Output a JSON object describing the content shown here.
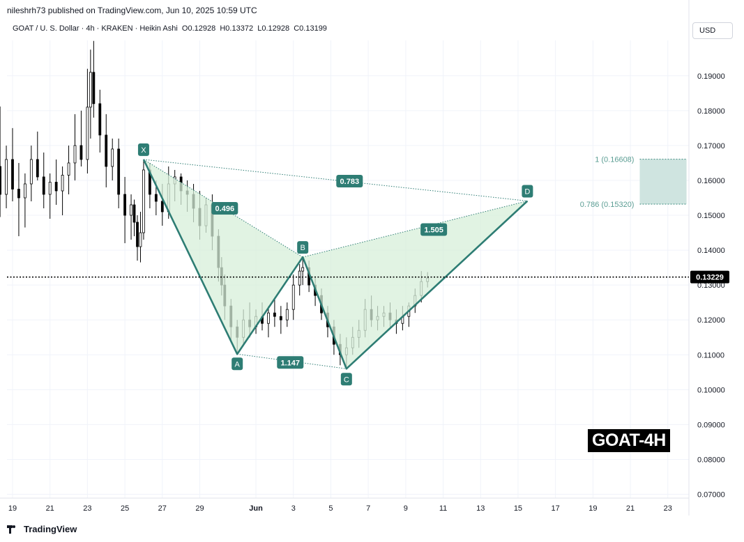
{
  "header": {
    "published": "nileshrh73 published on TradingView.com, Jun 10, 2025 10:59 UTC"
  },
  "legend": {
    "symbol": "GOAT / U. S. Dollar · 4h · KRAKEN · Heikin Ashi",
    "open": "O0.12928",
    "high": "H0.13372",
    "low": "L0.12928",
    "close": "C0.13199"
  },
  "currency": "USD",
  "badge": "GOAT-4H",
  "footer": {
    "brand": "TradingView"
  },
  "colors": {
    "pattern_line": "#2e7d74",
    "pattern_fill": "#d7efd9",
    "label_bg": "#2e7d74",
    "target_zone": "#cfe4e0",
    "target_text": "#5b9d93",
    "candle": "#000000",
    "price_line": "#000000"
  },
  "chart_data": {
    "type": "candlestick",
    "title": "GOAT / U. S. Dollar · 4h · KRAKEN · Heikin Ashi",
    "ylim": [
      0.068,
      0.204
    ],
    "y_ticks": [
      "0.07000",
      "0.08000",
      "0.09000",
      "0.10000",
      "0.11000",
      "0.12000",
      "0.13000",
      "0.14000",
      "0.15000",
      "0.16000",
      "0.17000",
      "0.18000",
      "0.19000"
    ],
    "x_ticks": [
      {
        "label": "19",
        "date": "2025-05-19"
      },
      {
        "label": "21",
        "date": "2025-05-21"
      },
      {
        "label": "23",
        "date": "2025-05-23"
      },
      {
        "label": "25",
        "date": "2025-05-25"
      },
      {
        "label": "27",
        "date": "2025-05-27"
      },
      {
        "label": "29",
        "date": "2025-05-29"
      },
      {
        "label": "Jun",
        "date": "2025-06-01"
      },
      {
        "label": "3",
        "date": "2025-06-03"
      },
      {
        "label": "5",
        "date": "2025-06-05"
      },
      {
        "label": "7",
        "date": "2025-06-07"
      },
      {
        "label": "9",
        "date": "2025-06-09"
      },
      {
        "label": "11",
        "date": "2025-06-11"
      },
      {
        "label": "13",
        "date": "2025-06-13"
      },
      {
        "label": "15",
        "date": "2025-06-15"
      },
      {
        "label": "17",
        "date": "2025-06-17"
      },
      {
        "label": "19",
        "date": "2025-06-19"
      },
      {
        "label": "21",
        "date": "2025-06-21"
      },
      {
        "label": "23",
        "date": "2025-06-23"
      }
    ],
    "last_price": 0.13229,
    "last_price_label": "0.13229",
    "pattern": {
      "points": [
        {
          "label": "X",
          "date": "2025-05-26 00:00",
          "price": 0.166
        },
        {
          "label": "A",
          "date": "2025-05-31 00:00",
          "price": 0.1102
        },
        {
          "label": "B",
          "date": "2025-06-03 12:00",
          "price": 0.138
        },
        {
          "label": "C",
          "date": "2025-06-05 20:00",
          "price": 0.106
        },
        {
          "label": "D",
          "date": "2025-06-15 12:00",
          "price": 0.1541
        }
      ],
      "ratios": [
        {
          "value": "0.496",
          "date": "2025-05-30 08:00",
          "price": 0.152
        },
        {
          "value": "1.147",
          "date": "2025-06-02 20:00",
          "price": 0.1078
        },
        {
          "value": "1.505",
          "date": "2025-06-10 12:00",
          "price": 0.1459
        },
        {
          "value": "0.783",
          "date": "2025-06-06 00:00",
          "price": 0.1598
        }
      ]
    },
    "target_zone": {
      "start_date": "2025-06-21 12:00",
      "end_date": "2025-06-24 00:00",
      "upper": {
        "price": 0.16608,
        "label": "1 (0.16608)"
      },
      "lower": {
        "price": 0.1532,
        "label": "0.786 (0.15320)"
      }
    },
    "candles": [
      {
        "date": "2025-05-18 08:00",
        "open": 0.164,
        "high": 0.1812,
        "low": 0.1495,
        "close": 0.156
      },
      {
        "date": "2025-05-18 16:00",
        "open": 0.156,
        "high": 0.17,
        "low": 0.152,
        "close": 0.166
      },
      {
        "date": "2025-05-19 00:00",
        "open": 0.166,
        "high": 0.175,
        "low": 0.154,
        "close": 0.1575
      },
      {
        "date": "2025-05-19 08:00",
        "open": 0.1575,
        "high": 0.165,
        "low": 0.144,
        "close": 0.155
      },
      {
        "date": "2025-05-19 16:00",
        "open": 0.155,
        "high": 0.162,
        "low": 0.1465,
        "close": 0.159
      },
      {
        "date": "2025-05-20 00:00",
        "open": 0.159,
        "high": 0.17,
        "low": 0.154,
        "close": 0.166
      },
      {
        "date": "2025-05-20 08:00",
        "open": 0.166,
        "high": 0.174,
        "low": 0.16,
        "close": 0.161
      },
      {
        "date": "2025-05-20 16:00",
        "open": 0.161,
        "high": 0.168,
        "low": 0.152,
        "close": 0.156
      },
      {
        "date": "2025-05-21 00:00",
        "open": 0.156,
        "high": 0.162,
        "low": 0.149,
        "close": 0.1595
      },
      {
        "date": "2025-05-21 08:00",
        "open": 0.1595,
        "high": 0.166,
        "low": 0.153,
        "close": 0.157
      },
      {
        "date": "2025-05-21 16:00",
        "open": 0.157,
        "high": 0.164,
        "low": 0.15,
        "close": 0.1615
      },
      {
        "date": "2025-05-22 00:00",
        "open": 0.1615,
        "high": 0.17,
        "low": 0.156,
        "close": 0.165
      },
      {
        "date": "2025-05-22 08:00",
        "open": 0.165,
        "high": 0.179,
        "low": 0.16,
        "close": 0.17
      },
      {
        "date": "2025-05-22 16:00",
        "open": 0.17,
        "high": 0.18,
        "low": 0.164,
        "close": 0.166
      },
      {
        "date": "2025-05-23 00:00",
        "open": 0.166,
        "high": 0.192,
        "low": 0.162,
        "close": 0.181
      },
      {
        "date": "2025-05-23 04:00",
        "open": 0.181,
        "high": 0.1975,
        "low": 0.172,
        "close": 0.191
      },
      {
        "date": "2025-05-23 08:00",
        "open": 0.191,
        "high": 0.2,
        "low": 0.178,
        "close": 0.182
      },
      {
        "date": "2025-05-23 16:00",
        "open": 0.182,
        "high": 0.186,
        "low": 0.168,
        "close": 0.173
      },
      {
        "date": "2025-05-24 00:00",
        "open": 0.173,
        "high": 0.179,
        "low": 0.158,
        "close": 0.164
      },
      {
        "date": "2025-05-24 08:00",
        "open": 0.164,
        "high": 0.172,
        "low": 0.16,
        "close": 0.169
      },
      {
        "date": "2025-05-24 16:00",
        "open": 0.169,
        "high": 0.172,
        "low": 0.152,
        "close": 0.156
      },
      {
        "date": "2025-05-25 00:00",
        "open": 0.156,
        "high": 0.161,
        "low": 0.142,
        "close": 0.15
      },
      {
        "date": "2025-05-25 08:00",
        "open": 0.15,
        "high": 0.156,
        "low": 0.143,
        "close": 0.153
      },
      {
        "date": "2025-05-25 12:00",
        "open": 0.153,
        "high": 0.1545,
        "low": 0.144,
        "close": 0.148
      },
      {
        "date": "2025-05-25 16:00",
        "open": 0.148,
        "high": 0.15,
        "low": 0.137,
        "close": 0.141
      },
      {
        "date": "2025-05-25 20:00",
        "open": 0.141,
        "high": 0.151,
        "low": 0.1365,
        "close": 0.145
      },
      {
        "date": "2025-05-26 00:00",
        "open": 0.145,
        "high": 0.166,
        "low": 0.143,
        "close": 0.163
      },
      {
        "date": "2025-05-26 08:00",
        "open": 0.163,
        "high": 0.165,
        "low": 0.152,
        "close": 0.156
      },
      {
        "date": "2025-05-26 16:00",
        "open": 0.156,
        "high": 0.16,
        "low": 0.15,
        "close": 0.154
      },
      {
        "date": "2025-05-27 00:00",
        "open": 0.154,
        "high": 0.159,
        "low": 0.147,
        "close": 0.151
      },
      {
        "date": "2025-05-27 08:00",
        "open": 0.151,
        "high": 0.164,
        "low": 0.149,
        "close": 0.159
      },
      {
        "date": "2025-05-27 16:00",
        "open": 0.159,
        "high": 0.163,
        "low": 0.154,
        "close": 0.161
      },
      {
        "date": "2025-05-28 00:00",
        "open": 0.161,
        "high": 0.162,
        "low": 0.153,
        "close": 0.157
      },
      {
        "date": "2025-05-28 08:00",
        "open": 0.157,
        "high": 0.16,
        "low": 0.151,
        "close": 0.156
      },
      {
        "date": "2025-05-28 16:00",
        "open": 0.156,
        "high": 0.159,
        "low": 0.148,
        "close": 0.152
      },
      {
        "date": "2025-05-29 00:00",
        "open": 0.152,
        "high": 0.157,
        "low": 0.143,
        "close": 0.147
      },
      {
        "date": "2025-05-29 08:00",
        "open": 0.147,
        "high": 0.155,
        "low": 0.145,
        "close": 0.153
      },
      {
        "date": "2025-05-29 16:00",
        "open": 0.153,
        "high": 0.156,
        "low": 0.14,
        "close": 0.144
      },
      {
        "date": "2025-05-30 00:00",
        "open": 0.144,
        "high": 0.146,
        "low": 0.131,
        "close": 0.135
      },
      {
        "date": "2025-05-30 04:00",
        "open": 0.135,
        "high": 0.138,
        "low": 0.127,
        "close": 0.13
      },
      {
        "date": "2025-05-30 08:00",
        "open": 0.13,
        "high": 0.133,
        "low": 0.12,
        "close": 0.124
      },
      {
        "date": "2025-05-30 16:00",
        "open": 0.124,
        "high": 0.126,
        "low": 0.114,
        "close": 0.118
      },
      {
        "date": "2025-05-31 00:00",
        "open": 0.118,
        "high": 0.12,
        "low": 0.11,
        "close": 0.115
      },
      {
        "date": "2025-05-31 08:00",
        "open": 0.115,
        "high": 0.123,
        "low": 0.113,
        "close": 0.12
      },
      {
        "date": "2025-05-31 16:00",
        "open": 0.12,
        "high": 0.125,
        "low": 0.115,
        "close": 0.118
      },
      {
        "date": "2025-06-01 00:00",
        "open": 0.118,
        "high": 0.123,
        "low": 0.116,
        "close": 0.121
      },
      {
        "date": "2025-06-01 08:00",
        "open": 0.121,
        "high": 0.125,
        "low": 0.117,
        "close": 0.119
      },
      {
        "date": "2025-06-01 16:00",
        "open": 0.119,
        "high": 0.124,
        "low": 0.115,
        "close": 0.122
      },
      {
        "date": "2025-06-02 00:00",
        "open": 0.122,
        "high": 0.126,
        "low": 0.118,
        "close": 0.121
      },
      {
        "date": "2025-06-02 08:00",
        "open": 0.121,
        "high": 0.124,
        "low": 0.116,
        "close": 0.12
      },
      {
        "date": "2025-06-02 16:00",
        "open": 0.12,
        "high": 0.125,
        "low": 0.118,
        "close": 0.123
      },
      {
        "date": "2025-06-03 00:00",
        "open": 0.123,
        "high": 0.133,
        "low": 0.12,
        "close": 0.13
      },
      {
        "date": "2025-06-03 08:00",
        "open": 0.13,
        "high": 0.136,
        "low": 0.127,
        "close": 0.134
      },
      {
        "date": "2025-06-03 12:00",
        "open": 0.134,
        "high": 0.138,
        "low": 0.13,
        "close": 0.135
      },
      {
        "date": "2025-06-03 20:00",
        "open": 0.135,
        "high": 0.137,
        "low": 0.128,
        "close": 0.13
      },
      {
        "date": "2025-06-04 04:00",
        "open": 0.13,
        "high": 0.132,
        "low": 0.124,
        "close": 0.127
      },
      {
        "date": "2025-06-04 12:00",
        "open": 0.127,
        "high": 0.129,
        "low": 0.12,
        "close": 0.122
      },
      {
        "date": "2025-06-04 20:00",
        "open": 0.122,
        "high": 0.124,
        "low": 0.115,
        "close": 0.118
      },
      {
        "date": "2025-06-05 04:00",
        "open": 0.118,
        "high": 0.12,
        "low": 0.11,
        "close": 0.113
      },
      {
        "date": "2025-06-05 12:00",
        "open": 0.113,
        "high": 0.116,
        "low": 0.107,
        "close": 0.11
      },
      {
        "date": "2025-06-05 20:00",
        "open": 0.11,
        "high": 0.115,
        "low": 0.106,
        "close": 0.112
      },
      {
        "date": "2025-06-06 04:00",
        "open": 0.112,
        "high": 0.118,
        "low": 0.11,
        "close": 0.115
      },
      {
        "date": "2025-06-06 12:00",
        "open": 0.115,
        "high": 0.12,
        "low": 0.112,
        "close": 0.117
      },
      {
        "date": "2025-06-06 20:00",
        "open": 0.117,
        "high": 0.126,
        "low": 0.115,
        "close": 0.123
      },
      {
        "date": "2025-06-07 04:00",
        "open": 0.123,
        "high": 0.127,
        "low": 0.118,
        "close": 0.12
      },
      {
        "date": "2025-06-07 12:00",
        "open": 0.12,
        "high": 0.124,
        "low": 0.117,
        "close": 0.121
      },
      {
        "date": "2025-06-07 20:00",
        "open": 0.121,
        "high": 0.124,
        "low": 0.118,
        "close": 0.122
      },
      {
        "date": "2025-06-08 04:00",
        "open": 0.122,
        "high": 0.125,
        "low": 0.118,
        "close": 0.12
      },
      {
        "date": "2025-06-08 12:00",
        "open": 0.12,
        "high": 0.123,
        "low": 0.116,
        "close": 0.119
      },
      {
        "date": "2025-06-08 20:00",
        "open": 0.119,
        "high": 0.124,
        "low": 0.117,
        "close": 0.121
      },
      {
        "date": "2025-06-09 04:00",
        "open": 0.121,
        "high": 0.125,
        "low": 0.118,
        "close": 0.124
      },
      {
        "date": "2025-06-09 12:00",
        "open": 0.124,
        "high": 0.129,
        "low": 0.122,
        "close": 0.127
      },
      {
        "date": "2025-06-09 20:00",
        "open": 0.127,
        "high": 0.134,
        "low": 0.125,
        "close": 0.131
      },
      {
        "date": "2025-06-10 04:00",
        "open": 0.131,
        "high": 0.1337,
        "low": 0.1293,
        "close": 0.132
      }
    ]
  }
}
